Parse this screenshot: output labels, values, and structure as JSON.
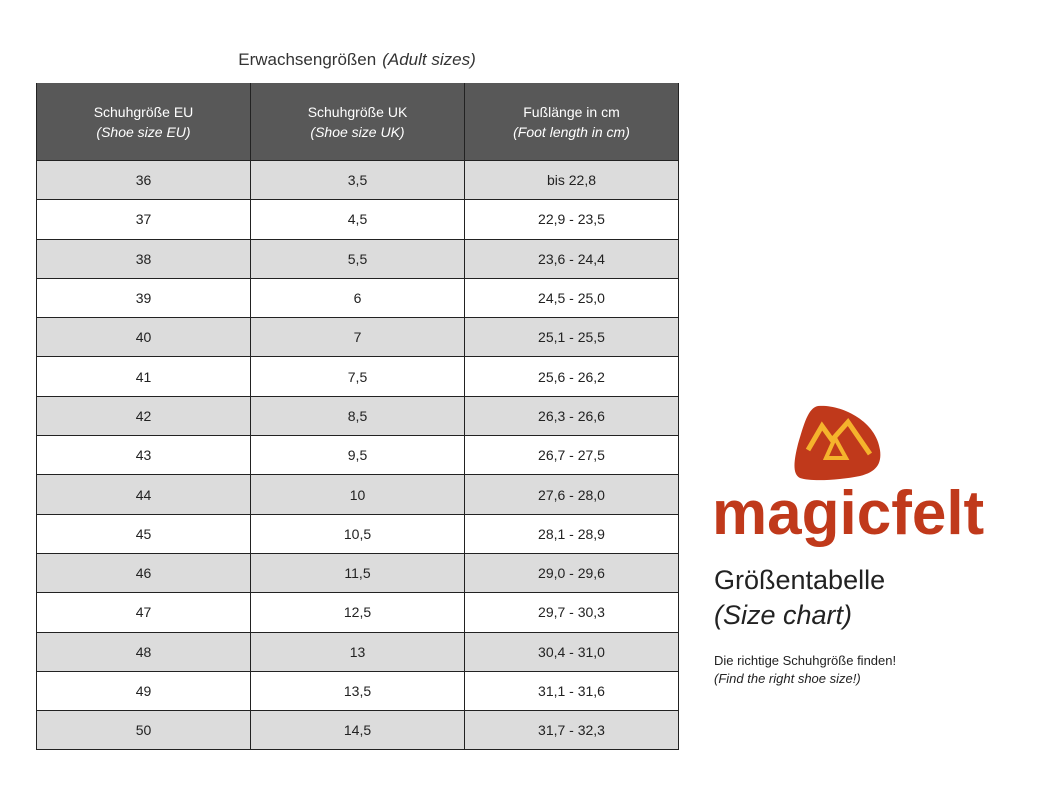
{
  "title": {
    "de": "Erwachsengrößen",
    "en": "(Adult sizes)"
  },
  "table": {
    "headers": [
      {
        "de": "Schuhgröße EU",
        "en": "(Shoe size EU)"
      },
      {
        "de": "Schuhgröße UK",
        "en": "(Shoe size UK)"
      },
      {
        "de": "Fußlänge in cm",
        "en": "(Foot length in cm)"
      }
    ],
    "rows": [
      [
        "36",
        "3,5",
        "bis 22,8"
      ],
      [
        "37",
        "4,5",
        "22,9 - 23,5"
      ],
      [
        "38",
        "5,5",
        "23,6 - 24,4"
      ],
      [
        "39",
        "6",
        "24,5 - 25,0"
      ],
      [
        "40",
        "7",
        "25,1 - 25,5"
      ],
      [
        "41",
        "7,5",
        "25,6 - 26,2"
      ],
      [
        "42",
        "8,5",
        "26,3 - 26,6"
      ],
      [
        "43",
        "9,5",
        "26,7 - 27,5"
      ],
      [
        "44",
        "10",
        "27,6 - 28,0"
      ],
      [
        "45",
        "10,5",
        "28,1 - 28,9"
      ],
      [
        "46",
        "11,5",
        "29,0 - 29,6"
      ],
      [
        "47",
        "12,5",
        "29,7 - 30,3"
      ],
      [
        "48",
        "13",
        "30,4 - 31,0"
      ],
      [
        "49",
        "13,5",
        "31,1 - 31,6"
      ],
      [
        "50",
        "14,5",
        "31,7 - 32,3"
      ]
    ]
  },
  "brand": {
    "name": "magicfelt",
    "color": "#c0391b",
    "accent": "#f5b32c"
  },
  "side": {
    "heading_de": "Größentabelle",
    "heading_en": "(Size chart)",
    "text_de": "Die richtige Schuhgröße finden!",
    "text_en": "(Find the right shoe size!)"
  },
  "colors": {
    "header_bg": "#585858",
    "alt_row": "#dcdcdc"
  }
}
